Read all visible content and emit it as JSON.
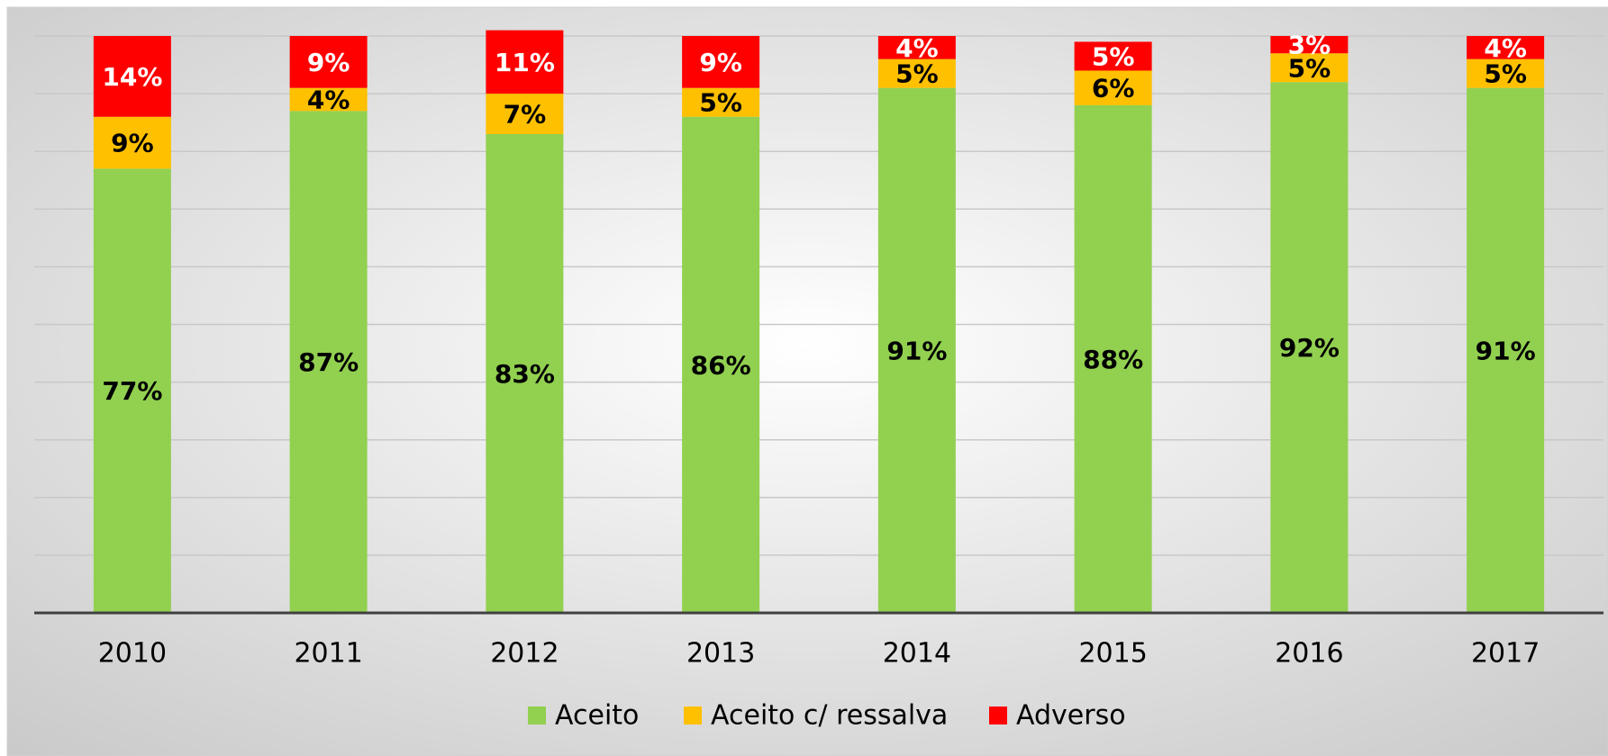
{
  "chart_data": {
    "type": "stacked_bar",
    "categories": [
      "2010",
      "2011",
      "2012",
      "2013",
      "2014",
      "2015",
      "2016",
      "2017"
    ],
    "series": [
      {
        "name": "Aceito",
        "color": "#92d050",
        "values": [
          77,
          87,
          83,
          86,
          91,
          88,
          92,
          91
        ],
        "value_labels": [
          "77%",
          "87%",
          "83%",
          "86%",
          "91%",
          "88%",
          "92%",
          "91%"
        ]
      },
      {
        "name": "Aceito c/ ressalva",
        "color": "#ffc000",
        "values": [
          9,
          4,
          7,
          5,
          5,
          6,
          5,
          5
        ],
        "value_labels": [
          "9%",
          "4%",
          "7%",
          "5%",
          "5%",
          "6%",
          "5%",
          "5%"
        ]
      },
      {
        "name": "Adverso",
        "color": "#ff0000",
        "values": [
          14,
          9,
          11,
          9,
          4,
          5,
          3,
          4
        ],
        "value_labels": [
          "14%",
          "9%",
          "11%",
          "9%",
          "4%",
          "5%",
          "3%",
          "4%"
        ]
      }
    ],
    "ylim": [
      0,
      100
    ],
    "yticks": [
      0,
      10,
      20,
      30,
      40,
      50,
      60,
      70,
      80,
      90,
      100
    ],
    "grid": true,
    "legend": "bottom"
  }
}
